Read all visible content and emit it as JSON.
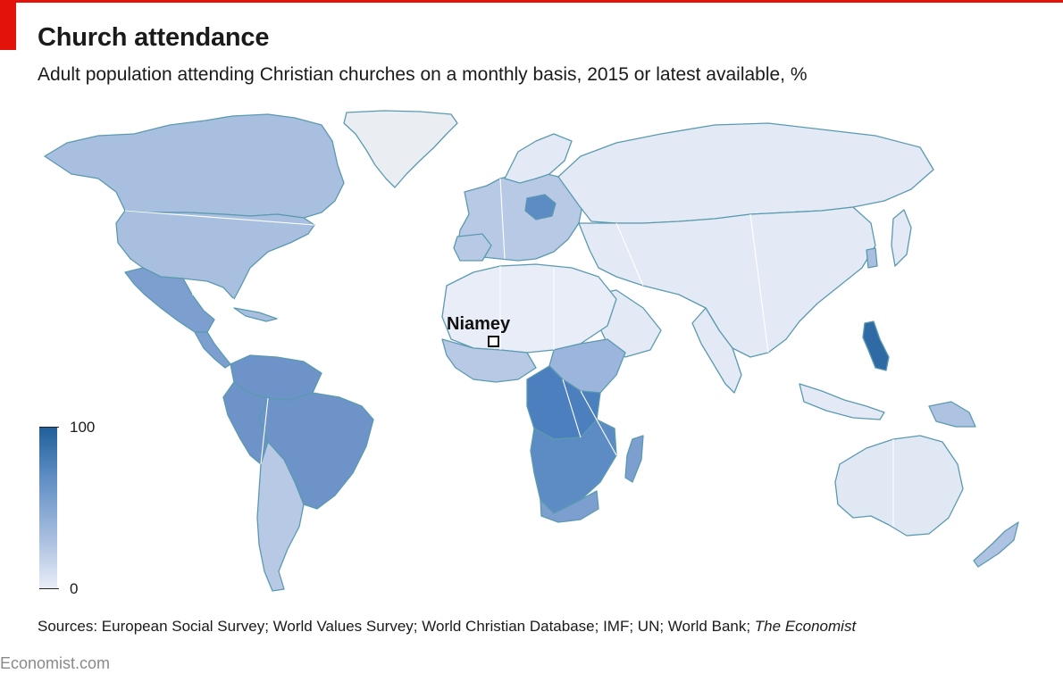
{
  "header": {
    "title": "Church attendance",
    "subtitle": "Adult population attending Christian churches on a monthly basis, 2015 or latest available, %"
  },
  "colors": {
    "brand_red": "#e3120b",
    "scale_high": "#1f5f99",
    "scale_low": "#e9eef8",
    "border": "#5a9ab0"
  },
  "legend": {
    "max_label": "100",
    "min_label": "0"
  },
  "annotation": {
    "city": "Niamey"
  },
  "footer": {
    "sources_prefix": "Sources: European Social Survey; World Values Survey; World Christian Database; IMF; UN; World Bank; ",
    "sources_italic": "The Economist",
    "brand": "Economist.com"
  }
}
